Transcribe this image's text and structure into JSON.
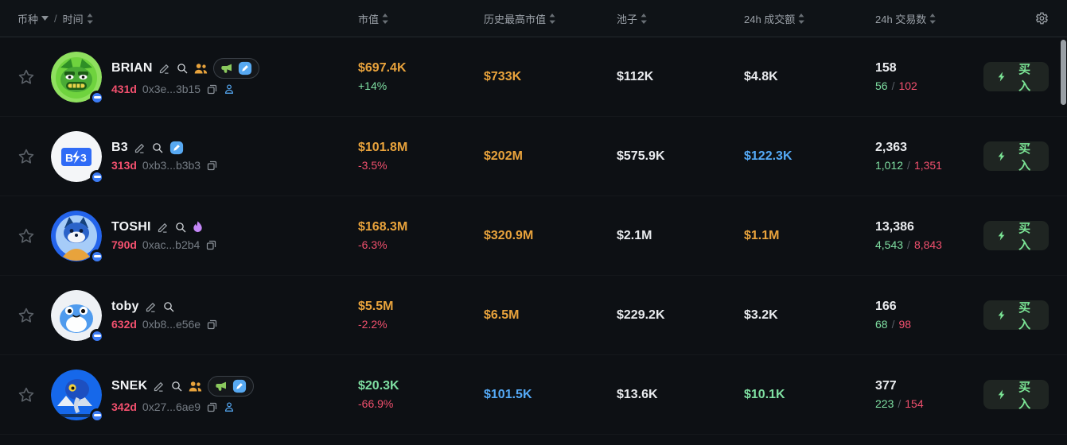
{
  "header": {
    "token": {
      "primary": "币种",
      "separator": "/",
      "secondary": "时间"
    },
    "columns": {
      "mcap": "市值",
      "ath": "历史最高市值",
      "pool": "池子",
      "vol": "24h 成交额",
      "tx": "24h 交易数"
    },
    "settings_icon": "gear-icon"
  },
  "labels": {
    "buy": "买入",
    "slash": "/"
  },
  "colors": {
    "gold": "#e9a33c",
    "green": "#7fdfa2",
    "red": "#f2506e",
    "blue": "#55aaf7",
    "white": "#e9ebee",
    "buy_text": "#7be495",
    "address_gray": "#757c84"
  },
  "rows": [
    {
      "name": "BRIAN",
      "age": "431d",
      "address": "0x3e...3b15",
      "avatar": "brian",
      "name_icons": [
        "edit",
        "search",
        "people",
        "promo-pill"
      ],
      "address_icons": [
        "copy",
        "person"
      ],
      "mcap": "$697.4K",
      "mcap_color": "gold",
      "change": "+14%",
      "change_color": "green",
      "ath": "$733K",
      "ath_color": "gold",
      "pool": "$112K",
      "vol": "$4.8K",
      "vol_color": "white",
      "tx_total": "158",
      "tx_buys": "56",
      "tx_sells": "102"
    },
    {
      "name": "B3",
      "age": "313d",
      "address": "0xb3...b3b3",
      "avatar": "b3",
      "name_icons": [
        "edit",
        "search",
        "shield"
      ],
      "address_icons": [
        "copy"
      ],
      "mcap": "$101.8M",
      "mcap_color": "gold",
      "change": "-3.5%",
      "change_color": "red",
      "ath": "$202M",
      "ath_color": "gold",
      "pool": "$575.9K",
      "vol": "$122.3K",
      "vol_color": "blue",
      "tx_total": "2,363",
      "tx_buys": "1,012",
      "tx_sells": "1,351"
    },
    {
      "name": "TOSHI",
      "age": "790d",
      "address": "0xac...b2b4",
      "avatar": "toshi",
      "name_icons": [
        "edit",
        "search",
        "flame"
      ],
      "address_icons": [
        "copy"
      ],
      "mcap": "$168.3M",
      "mcap_color": "gold",
      "change": "-6.3%",
      "change_color": "red",
      "ath": "$320.9M",
      "ath_color": "gold",
      "pool": "$2.1M",
      "vol": "$1.1M",
      "vol_color": "gold",
      "tx_total": "13,386",
      "tx_buys": "4,543",
      "tx_sells": "8,843"
    },
    {
      "name": "toby",
      "age": "632d",
      "address": "0xb8...e56e",
      "avatar": "toby",
      "name_icons": [
        "edit",
        "search"
      ],
      "address_icons": [
        "copy"
      ],
      "mcap": "$5.5M",
      "mcap_color": "gold",
      "change": "-2.2%",
      "change_color": "red",
      "ath": "$6.5M",
      "ath_color": "gold",
      "pool": "$229.2K",
      "vol": "$3.2K",
      "vol_color": "white",
      "tx_total": "166",
      "tx_buys": "68",
      "tx_sells": "98"
    },
    {
      "name": "SNEK",
      "age": "342d",
      "address": "0x27...6ae9",
      "avatar": "snek",
      "name_icons": [
        "edit",
        "search",
        "people",
        "promo-pill"
      ],
      "address_icons": [
        "copy",
        "person"
      ],
      "mcap": "$20.3K",
      "mcap_color": "green",
      "change": "-66.9%",
      "change_color": "red",
      "ath": "$101.5K",
      "ath_color": "blue",
      "pool": "$13.6K",
      "vol": "$10.1K",
      "vol_color": "green",
      "tx_total": "377",
      "tx_buys": "223",
      "tx_sells": "154"
    }
  ]
}
